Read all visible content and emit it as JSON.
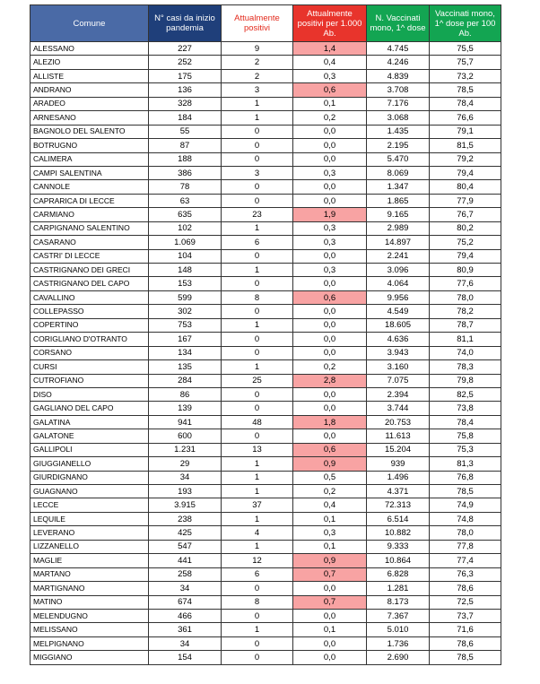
{
  "table": {
    "header": [
      "Comune",
      "N° casi da inizio pandemia",
      "Attualmente positivi",
      "Attualmente positivi per 1.000 Ab.",
      "N. Vaccinati mono, 1^ dose",
      "Vaccinati mono, 1^ dose per 100 Ab."
    ],
    "highlight_column": 3,
    "highlight_color": "#f8a3a3",
    "rows": [
      {
        "cells": [
          "ALESSANO",
          "227",
          "9",
          "1,4",
          "4.745",
          "75,5"
        ],
        "highlight": true
      },
      {
        "cells": [
          "ALEZIO",
          "252",
          "2",
          "0,4",
          "4.246",
          "75,7"
        ],
        "highlight": false
      },
      {
        "cells": [
          "ALLISTE",
          "175",
          "2",
          "0,3",
          "4.839",
          "73,2"
        ],
        "highlight": false
      },
      {
        "cells": [
          "ANDRANO",
          "136",
          "3",
          "0,6",
          "3.708",
          "78,5"
        ],
        "highlight": true
      },
      {
        "cells": [
          "ARADEO",
          "328",
          "1",
          "0,1",
          "7.176",
          "78,4"
        ],
        "highlight": false
      },
      {
        "cells": [
          "ARNESANO",
          "184",
          "1",
          "0,2",
          "3.068",
          "76,6"
        ],
        "highlight": false
      },
      {
        "cells": [
          "BAGNOLO DEL SALENTO",
          "55",
          "0",
          "0,0",
          "1.435",
          "79,1"
        ],
        "highlight": false
      },
      {
        "cells": [
          "BOTRUGNO",
          "87",
          "0",
          "0,0",
          "2.195",
          "81,5"
        ],
        "highlight": false
      },
      {
        "cells": [
          "CALIMERA",
          "188",
          "0",
          "0,0",
          "5.470",
          "79,2"
        ],
        "highlight": false
      },
      {
        "cells": [
          "CAMPI SALENTINA",
          "386",
          "3",
          "0,3",
          "8.069",
          "79,4"
        ],
        "highlight": false
      },
      {
        "cells": [
          "CANNOLE",
          "78",
          "0",
          "0,0",
          "1.347",
          "80,4"
        ],
        "highlight": false
      },
      {
        "cells": [
          "CAPRARICA DI LECCE",
          "63",
          "0",
          "0,0",
          "1.865",
          "77,9"
        ],
        "highlight": false
      },
      {
        "cells": [
          "CARMIANO",
          "635",
          "23",
          "1,9",
          "9.165",
          "76,7"
        ],
        "highlight": true
      },
      {
        "cells": [
          "CARPIGNANO SALENTINO",
          "102",
          "1",
          "0,3",
          "2.989",
          "80,2"
        ],
        "highlight": false
      },
      {
        "cells": [
          "CASARANO",
          "1.069",
          "6",
          "0,3",
          "14.897",
          "75,2"
        ],
        "highlight": false
      },
      {
        "cells": [
          "CASTRI' DI LECCE",
          "104",
          "0",
          "0,0",
          "2.241",
          "79,4"
        ],
        "highlight": false
      },
      {
        "cells": [
          "CASTRIGNANO DEI GRECI",
          "148",
          "1",
          "0,3",
          "3.096",
          "80,9"
        ],
        "highlight": false
      },
      {
        "cells": [
          "CASTRIGNANO DEL CAPO",
          "153",
          "0",
          "0,0",
          "4.064",
          "77,6"
        ],
        "highlight": false
      },
      {
        "cells": [
          "CAVALLINO",
          "599",
          "8",
          "0,6",
          "9.956",
          "78,0"
        ],
        "highlight": true
      },
      {
        "cells": [
          "COLLEPASSO",
          "302",
          "0",
          "0,0",
          "4.549",
          "78,2"
        ],
        "highlight": false
      },
      {
        "cells": [
          "COPERTINO",
          "753",
          "1",
          "0,0",
          "18.605",
          "78,7"
        ],
        "highlight": false
      },
      {
        "cells": [
          "CORIGLIANO D'OTRANTO",
          "167",
          "0",
          "0,0",
          "4.636",
          "81,1"
        ],
        "highlight": false
      },
      {
        "cells": [
          "CORSANO",
          "134",
          "0",
          "0,0",
          "3.943",
          "74,0"
        ],
        "highlight": false
      },
      {
        "cells": [
          "CURSI",
          "135",
          "1",
          "0,2",
          "3.160",
          "78,3"
        ],
        "highlight": false
      },
      {
        "cells": [
          "CUTROFIANO",
          "284",
          "25",
          "2,8",
          "7.075",
          "79,8"
        ],
        "highlight": true
      },
      {
        "cells": [
          "DISO",
          "86",
          "0",
          "0,0",
          "2.394",
          "82,5"
        ],
        "highlight": false
      },
      {
        "cells": [
          "GAGLIANO DEL CAPO",
          "139",
          "0",
          "0,0",
          "3.744",
          "73,8"
        ],
        "highlight": false
      },
      {
        "cells": [
          "GALATINA",
          "941",
          "48",
          "1,8",
          "20.753",
          "78,4"
        ],
        "highlight": true
      },
      {
        "cells": [
          "GALATONE",
          "600",
          "0",
          "0,0",
          "11.613",
          "75,8"
        ],
        "highlight": false
      },
      {
        "cells": [
          "GALLIPOLI",
          "1.231",
          "13",
          "0,6",
          "15.204",
          "75,3"
        ],
        "highlight": true
      },
      {
        "cells": [
          "GIUGGIANELLO",
          "29",
          "1",
          "0,9",
          "939",
          "81,3"
        ],
        "highlight": true
      },
      {
        "cells": [
          "GIURDIGNANO",
          "34",
          "1",
          "0,5",
          "1.496",
          "76,8"
        ],
        "highlight": false
      },
      {
        "cells": [
          "GUAGNANO",
          "193",
          "1",
          "0,2",
          "4.371",
          "78,5"
        ],
        "highlight": false
      },
      {
        "cells": [
          "LECCE",
          "3.915",
          "37",
          "0,4",
          "72.313",
          "74,9"
        ],
        "highlight": false
      },
      {
        "cells": [
          "LEQUILE",
          "238",
          "1",
          "0,1",
          "6.514",
          "74,8"
        ],
        "highlight": false
      },
      {
        "cells": [
          "LEVERANO",
          "425",
          "4",
          "0,3",
          "10.882",
          "78,0"
        ],
        "highlight": false
      },
      {
        "cells": [
          "LIZZANELLO",
          "547",
          "1",
          "0,1",
          "9.333",
          "77,8"
        ],
        "highlight": false
      },
      {
        "cells": [
          "MAGLIE",
          "441",
          "12",
          "0,9",
          "10.864",
          "77,4"
        ],
        "highlight": true
      },
      {
        "cells": [
          "MARTANO",
          "258",
          "6",
          "0,7",
          "6.828",
          "76,3"
        ],
        "highlight": true
      },
      {
        "cells": [
          "MARTIGNANO",
          "34",
          "0",
          "0,0",
          "1.281",
          "78,6"
        ],
        "highlight": false
      },
      {
        "cells": [
          "MATINO",
          "674",
          "8",
          "0,7",
          "8.173",
          "72,5"
        ],
        "highlight": true
      },
      {
        "cells": [
          "MELENDUGNO",
          "466",
          "0",
          "0,0",
          "7.367",
          "73,7"
        ],
        "highlight": false
      },
      {
        "cells": [
          "MELISSANO",
          "361",
          "1",
          "0,1",
          "5.010",
          "71,6"
        ],
        "highlight": false
      },
      {
        "cells": [
          "MELPIGNANO",
          "34",
          "0",
          "0,0",
          "1.736",
          "78,6"
        ],
        "highlight": false
      },
      {
        "cells": [
          "MIGGIANO",
          "154",
          "0",
          "0,0",
          "2.690",
          "78,5"
        ],
        "highlight": false
      }
    ]
  }
}
